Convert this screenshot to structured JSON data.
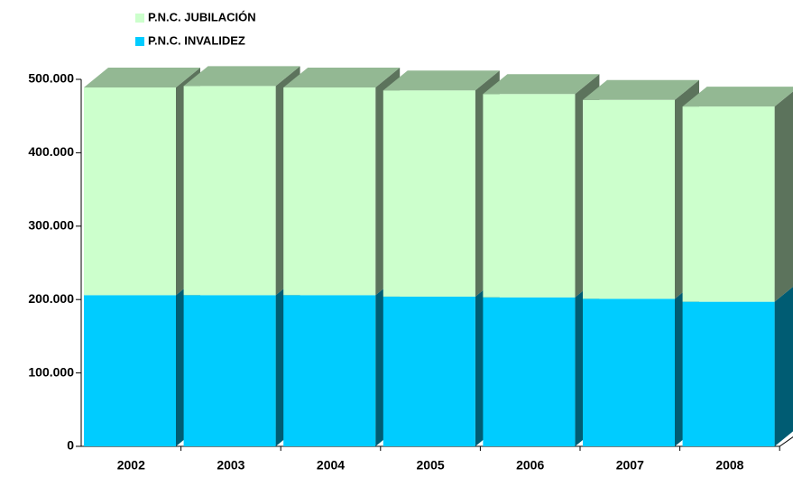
{
  "chart_data": {
    "type": "bar3d_stacked",
    "categories": [
      "2002",
      "2003",
      "2004",
      "2005",
      "2006",
      "2007",
      "2008"
    ],
    "series": [
      {
        "name": "P.N.C. INVALIDEZ",
        "color": "#00ccff",
        "values": [
          206000,
          206000,
          206000,
          204000,
          203000,
          201000,
          197000
        ]
      },
      {
        "name": "P.N.C. JUBILACIÓN",
        "color": "#ccffcc",
        "values": [
          283000,
          285000,
          283000,
          281000,
          277000,
          271000,
          266000
        ]
      }
    ],
    "ylim": [
      0,
      500000
    ],
    "yticks": [
      0,
      {
        "value": 100000,
        "label": "100.000"
      },
      {
        "value": 200000,
        "label": "200.000"
      },
      {
        "value": 300000,
        "label": "300.000"
      },
      {
        "value": 400000,
        "label": "400.000"
      },
      {
        "value": 500000,
        "label": "500.000"
      }
    ]
  }
}
